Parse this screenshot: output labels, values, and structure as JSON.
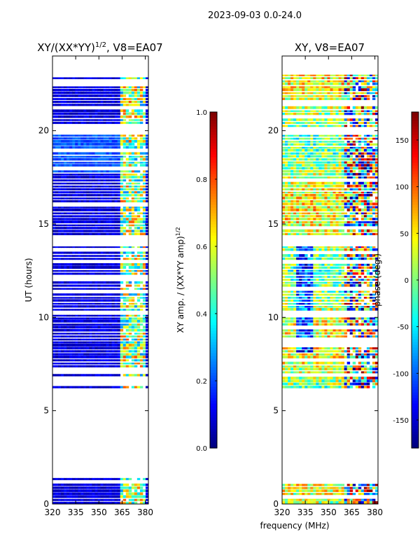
{
  "suptitle": "2023-09-03 0.0-24.0",
  "shared_xlabel": "frequency (MHz)",
  "colormap": "jet",
  "colors": {
    "jet_stops": [
      "#00007f",
      "#0000ff",
      "#007fff",
      "#00ffff",
      "#7fff7f",
      "#ffff00",
      "#ff7f00",
      "#ff0000",
      "#7f0000"
    ],
    "background": "#ffffff"
  },
  "chart_data": [
    {
      "type": "heatmap",
      "title": "XY/(XX*YY)^1/2, V8=EA07",
      "title_main": "XY/(XX*YY)",
      "title_exp": "1/2",
      "title_tail": ", V8=EA07",
      "xlabel": "",
      "ylabel": "UT (hours)",
      "xlim": [
        320,
        382
      ],
      "ylim": [
        0,
        24
      ],
      "xticks": [
        "320",
        "335",
        "350",
        "365",
        "380"
      ],
      "xtick_values": [
        320,
        335,
        350,
        365,
        380
      ],
      "yticks": [
        "0",
        "5",
        "10",
        "15",
        "20"
      ],
      "ytick_values": [
        0,
        5,
        10,
        15,
        20
      ],
      "data_bands_hours": [
        [
          0.0,
          1.4
        ],
        [
          6.2,
          13.8
        ],
        [
          14.4,
          19.8
        ],
        [
          20.2,
          23.0
        ]
      ],
      "colorbar": {
        "label": "XY amp. / (XX*YY amp)^1/2",
        "label_main": "XY amp. / (XX*YY amp)",
        "label_exp": "1/2",
        "range": [
          0.0,
          1.0
        ],
        "ticks": [
          "0.0",
          "0.2",
          "0.4",
          "0.6",
          "0.8",
          "1.0"
        ],
        "tick_values": [
          0.0,
          0.2,
          0.4,
          0.6,
          0.8,
          1.0
        ]
      }
    },
    {
      "type": "heatmap",
      "title": "XY, V8=EA07",
      "xlabel": "frequency (MHz)",
      "ylabel": "",
      "xlim": [
        320,
        382
      ],
      "ylim": [
        0,
        24
      ],
      "xticks": [
        "320",
        "335",
        "350",
        "365",
        "380"
      ],
      "xtick_values": [
        320,
        335,
        350,
        365,
        380
      ],
      "yticks": [
        "0",
        "5",
        "10",
        "15",
        "20"
      ],
      "ytick_values": [
        0,
        5,
        10,
        15,
        20
      ],
      "data_bands_hours": [
        [
          0.0,
          1.4
        ],
        [
          6.2,
          13.8
        ],
        [
          14.4,
          19.8
        ],
        [
          20.2,
          23.0
        ]
      ],
      "colorbar": {
        "label": "phase (deg.)",
        "range": [
          -180,
          180
        ],
        "ticks": [
          "-150",
          "-100",
          "-50",
          "0",
          "50",
          "100",
          "150"
        ],
        "tick_values": [
          -150,
          -100,
          -50,
          0,
          50,
          100,
          150
        ]
      }
    }
  ]
}
